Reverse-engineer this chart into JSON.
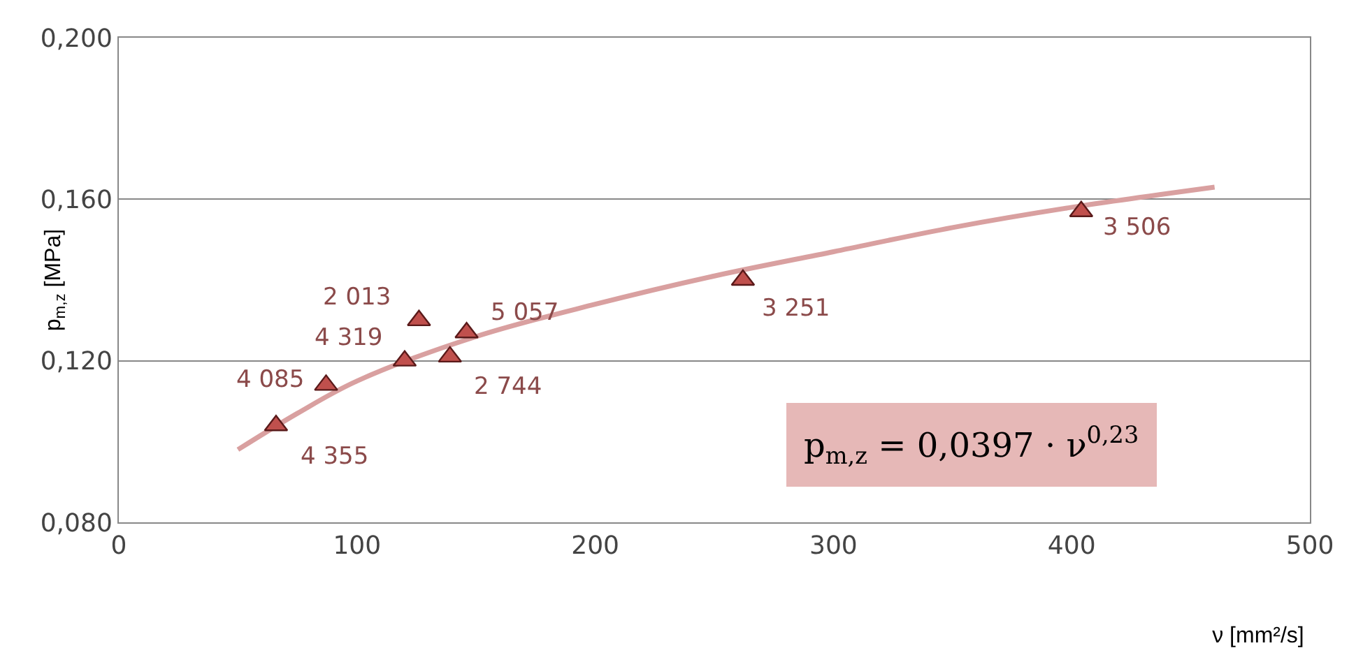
{
  "chart_data": {
    "type": "scatter",
    "xlabel": "ν [mm²/s]",
    "ylabel": "p$_{m,z}$ [MPa]",
    "xlim": [
      0,
      500
    ],
    "xticks": [
      0,
      100,
      200,
      300,
      400,
      500
    ],
    "ylim": [
      0.08,
      0.2
    ],
    "yticks": [
      {
        "value": 0.08,
        "label": "0,080"
      },
      {
        "value": 0.12,
        "label": "0,120"
      },
      {
        "value": 0.16,
        "label": "0,160"
      },
      {
        "value": 0.2,
        "label": "0,200"
      }
    ],
    "grid": "y",
    "marker": "triangle",
    "series": [
      {
        "type": "line",
        "color": "#d9a0a0",
        "line_style": "solid",
        "marker": "none",
        "x": [
          50,
          75,
          100,
          150,
          200,
          250,
          300,
          350,
          400,
          460
        ],
        "values": [
          0.098,
          0.107,
          0.115,
          0.126,
          0.134,
          0.141,
          0.147,
          0.153,
          0.158,
          0.163
        ]
      },
      {
        "color": "#c0504d",
        "x": [
          66,
          87,
          120,
          126,
          139,
          146,
          262,
          404
        ],
        "values": [
          0.104,
          0.114,
          0.12,
          0.13,
          0.121,
          0.127,
          0.14,
          0.157
        ]
      }
    ],
    "annotations": [
      {
        "text": "4 355",
        "x": 66,
        "y": 0.104
      },
      {
        "text": "4 085",
        "x": 87,
        "y": 0.114
      },
      {
        "text": "4 319",
        "x": 120,
        "y": 0.12
      },
      {
        "text": "2 013",
        "x": 126,
        "y": 0.13
      },
      {
        "text": "2 744",
        "x": 139,
        "y": 0.121
      },
      {
        "text": "5 057",
        "x": 146,
        "y": 0.127
      },
      {
        "text": "3 251",
        "x": 262,
        "y": 0.14
      },
      {
        "text": "3 506",
        "x": 404,
        "y": 0.157
      },
      "p$_{m,z}$ = 0,0397 · ν$^{0,23}$"
    ]
  }
}
